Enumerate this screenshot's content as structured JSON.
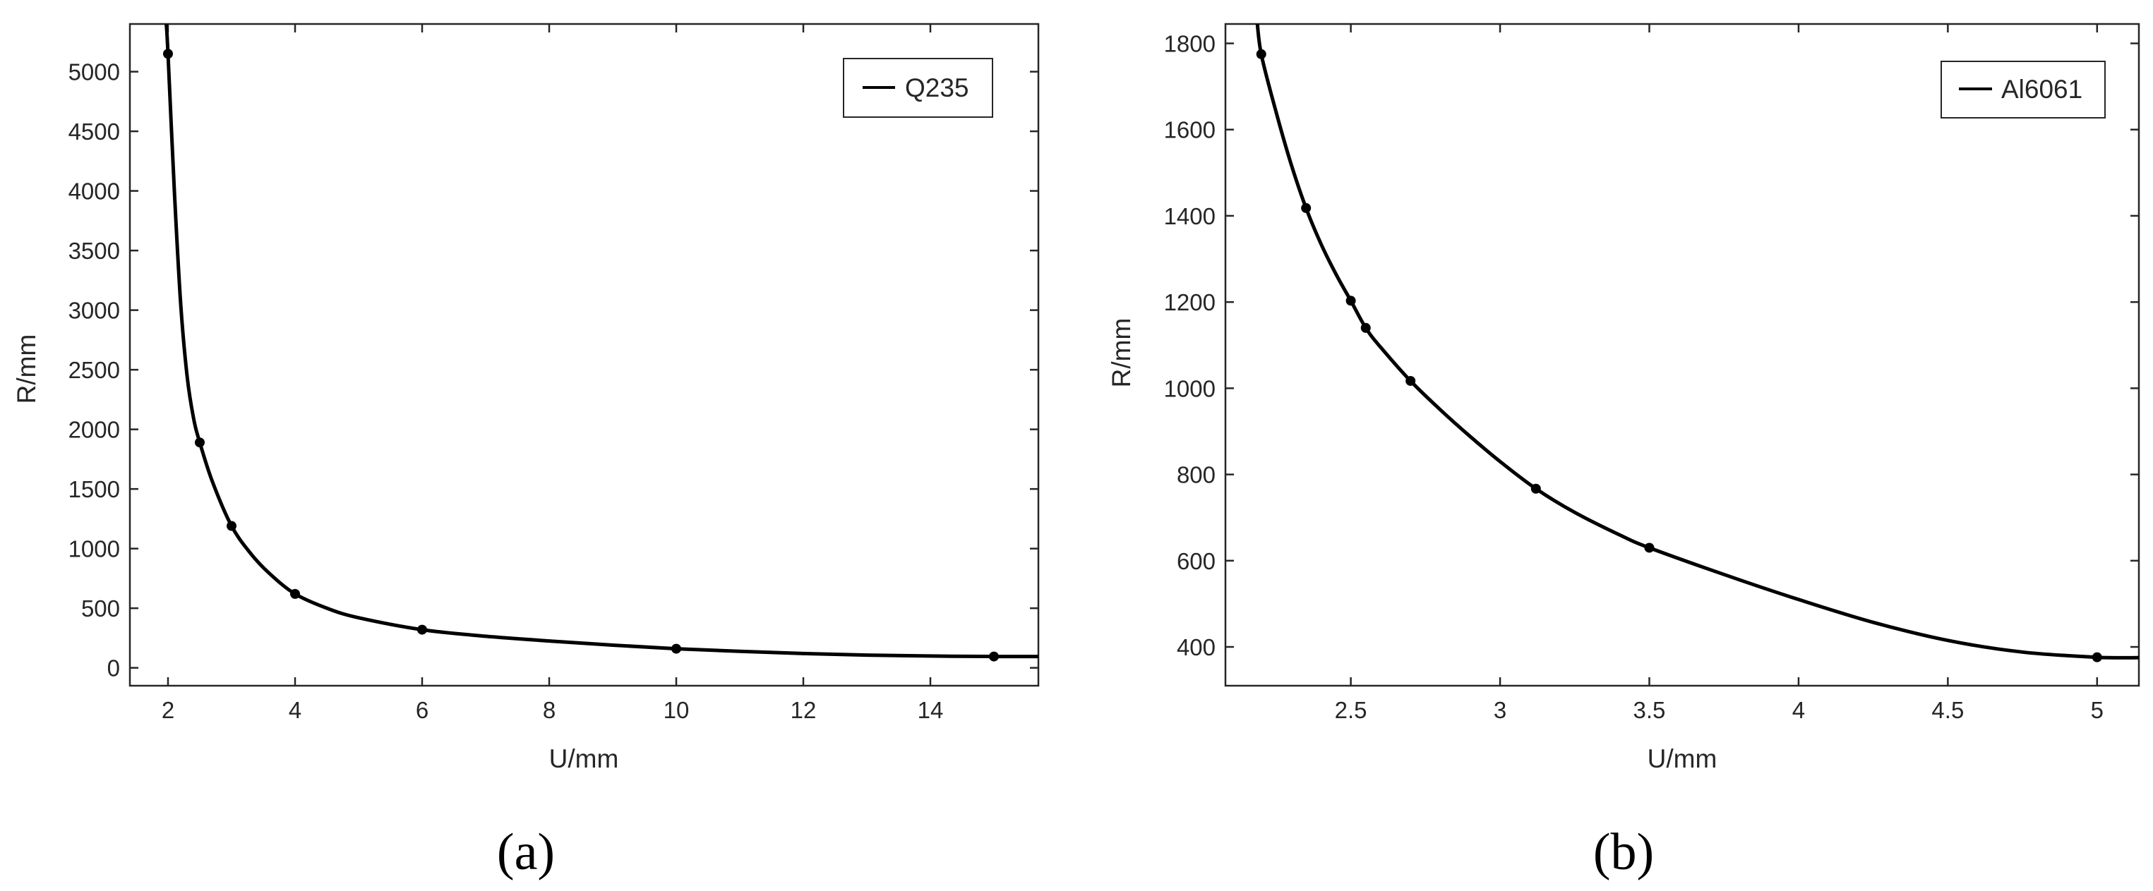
{
  "chart_data": [
    {
      "type": "line",
      "panel_label": "(a)",
      "xlabel": "U/mm",
      "ylabel": "R/mm",
      "xlim": [
        1.4,
        15.7
      ],
      "ylim": [
        -150,
        5400
      ],
      "xticks": [
        2,
        4,
        6,
        8,
        10,
        12,
        14
      ],
      "yticks": [
        0,
        500,
        1000,
        1500,
        2000,
        2500,
        3000,
        3500,
        4000,
        4500,
        5000
      ],
      "grid": false,
      "legend_position": "top-right",
      "series": [
        {
          "name": "Q235",
          "color": "#000000",
          "markers": [
            {
              "x": 2,
              "y": 5150
            },
            {
              "x": 2.5,
              "y": 1890
            },
            {
              "x": 3,
              "y": 1190
            },
            {
              "x": 4,
              "y": 620
            },
            {
              "x": 6,
              "y": 320
            },
            {
              "x": 10,
              "y": 160
            },
            {
              "x": 15,
              "y": 95
            }
          ],
          "curve": [
            {
              "x": 1.97,
              "y": 5420
            },
            {
              "x": 2,
              "y": 5150
            },
            {
              "x": 2.1,
              "y": 4000
            },
            {
              "x": 2.2,
              "y": 3050
            },
            {
              "x": 2.3,
              "y": 2450
            },
            {
              "x": 2.4,
              "y": 2100
            },
            {
              "x": 2.5,
              "y": 1890
            },
            {
              "x": 2.7,
              "y": 1560
            },
            {
              "x": 3,
              "y": 1190
            },
            {
              "x": 3.3,
              "y": 960
            },
            {
              "x": 3.6,
              "y": 790
            },
            {
              "x": 4,
              "y": 620
            },
            {
              "x": 4.5,
              "y": 500
            },
            {
              "x": 5,
              "y": 420
            },
            {
              "x": 6,
              "y": 320
            },
            {
              "x": 7,
              "y": 265
            },
            {
              "x": 8,
              "y": 225
            },
            {
              "x": 9,
              "y": 190
            },
            {
              "x": 10,
              "y": 160
            },
            {
              "x": 11,
              "y": 138
            },
            {
              "x": 12,
              "y": 120
            },
            {
              "x": 13,
              "y": 107
            },
            {
              "x": 14,
              "y": 99
            },
            {
              "x": 15,
              "y": 95
            },
            {
              "x": 15.7,
              "y": 95
            }
          ]
        }
      ]
    },
    {
      "type": "line",
      "panel_label": "(b)",
      "xlabel": "U/mm",
      "ylabel": "R/mm",
      "xlim": [
        2.08,
        5.14
      ],
      "ylim": [
        310,
        1845
      ],
      "xticks": [
        2.5,
        3,
        3.5,
        4,
        4.5,
        5
      ],
      "yticks": [
        400,
        600,
        800,
        1000,
        1200,
        1400,
        1600,
        1800
      ],
      "grid": false,
      "legend_position": "top-right",
      "series": [
        {
          "name": "Al6061",
          "color": "#000000",
          "markers": [
            {
              "x": 2.2,
              "y": 1775
            },
            {
              "x": 2.35,
              "y": 1418
            },
            {
              "x": 2.5,
              "y": 1203
            },
            {
              "x": 2.55,
              "y": 1140
            },
            {
              "x": 2.7,
              "y": 1017
            },
            {
              "x": 3.12,
              "y": 767
            },
            {
              "x": 3.5,
              "y": 630
            },
            {
              "x": 5,
              "y": 376
            }
          ],
          "curve": [
            {
              "x": 2.185,
              "y": 1860
            },
            {
              "x": 2.2,
              "y": 1775
            },
            {
              "x": 2.25,
              "y": 1640
            },
            {
              "x": 2.3,
              "y": 1520
            },
            {
              "x": 2.35,
              "y": 1418
            },
            {
              "x": 2.4,
              "y": 1335
            },
            {
              "x": 2.45,
              "y": 1265
            },
            {
              "x": 2.5,
              "y": 1203
            },
            {
              "x": 2.55,
              "y": 1140
            },
            {
              "x": 2.6,
              "y": 1095
            },
            {
              "x": 2.7,
              "y": 1017
            },
            {
              "x": 2.8,
              "y": 950
            },
            {
              "x": 2.9,
              "y": 888
            },
            {
              "x": 3,
              "y": 830
            },
            {
              "x": 3.12,
              "y": 767
            },
            {
              "x": 3.25,
              "y": 712
            },
            {
              "x": 3.4,
              "y": 660
            },
            {
              "x": 3.5,
              "y": 630
            },
            {
              "x": 3.75,
              "y": 568
            },
            {
              "x": 4,
              "y": 510
            },
            {
              "x": 4.25,
              "y": 457
            },
            {
              "x": 4.5,
              "y": 415
            },
            {
              "x": 4.75,
              "y": 388
            },
            {
              "x": 5,
              "y": 376
            },
            {
              "x": 5.14,
              "y": 375
            }
          ]
        }
      ]
    }
  ]
}
